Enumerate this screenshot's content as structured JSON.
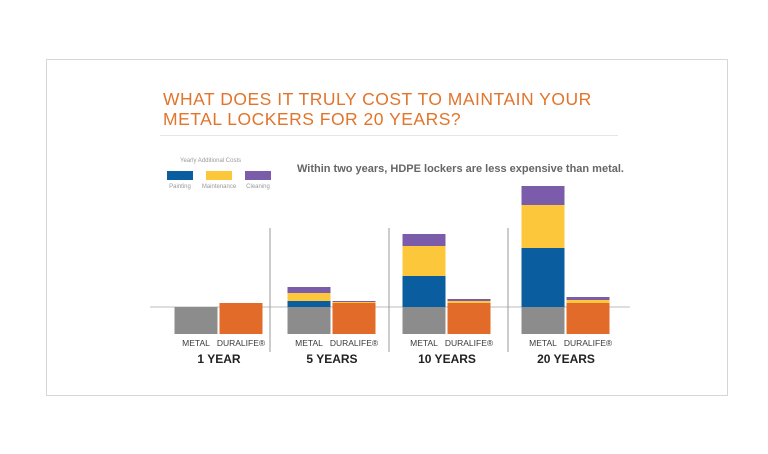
{
  "title_lines": [
    "WHAT DOES IT TRULY COST TO MAINTAIN YOUR",
    "METAL LOCKERS FOR 20 YEARS?"
  ],
  "annotation": "Within two years, HDPE lockers are less expensive than metal.",
  "legend": {
    "title": "Yearly Additional Costs",
    "items": [
      {
        "label": "Painting",
        "color": "#0a5d9e"
      },
      {
        "label": "Maintenance",
        "color": "#fcc73a"
      },
      {
        "label": "Cleaning",
        "color": "#7a5caa"
      }
    ]
  },
  "chart_data": {
    "type": "bar",
    "stacked": true,
    "title": "WHAT DOES IT TRULY COST TO MAINTAIN YOUR METAL LOCKERS FOR 20 YEARS?",
    "groups": [
      "1 YEAR",
      "5 YEARS",
      "10 YEARS",
      "20 YEARS"
    ],
    "bar_labels": [
      "METAL",
      "DURALIFE®"
    ],
    "base_colors": {
      "METAL": "#8c8c8c",
      "DURALIFE®": "#e36b2a"
    },
    "segment_colors": {
      "Painting": "#0a5d9e",
      "Maintenance": "#fcc73a",
      "Cleaning": "#7a5caa"
    },
    "baseline_value": 27,
    "bars": [
      {
        "group": "1 YEAR",
        "label": "METAL",
        "base": 27,
        "Painting": 0,
        "Maintenance": 0,
        "Cleaning": 0
      },
      {
        "group": "1 YEAR",
        "label": "DURALIFE®",
        "base": 31,
        "Painting": 0,
        "Maintenance": 0,
        "Cleaning": 0
      },
      {
        "group": "5 YEARS",
        "label": "METAL",
        "base": 27,
        "Painting": 6,
        "Maintenance": 8,
        "Cleaning": 6
      },
      {
        "group": "5 YEARS",
        "label": "DURALIFE®",
        "base": 31,
        "Painting": 0,
        "Maintenance": 1,
        "Cleaning": 1
      },
      {
        "group": "10 YEARS",
        "label": "METAL",
        "base": 27,
        "Painting": 31,
        "Maintenance": 30,
        "Cleaning": 12
      },
      {
        "group": "10 YEARS",
        "label": "DURALIFE®",
        "base": 31,
        "Painting": 0,
        "Maintenance": 2,
        "Cleaning": 2
      },
      {
        "group": "20 YEARS",
        "label": "METAL",
        "base": 27,
        "Painting": 59,
        "Maintenance": 43,
        "Cleaning": 19
      },
      {
        "group": "20 YEARS",
        "label": "DURALIFE®",
        "base": 31,
        "Painting": 0,
        "Maintenance": 3,
        "Cleaning": 3
      }
    ],
    "ylim": [
      0,
      150
    ],
    "grid": false
  }
}
